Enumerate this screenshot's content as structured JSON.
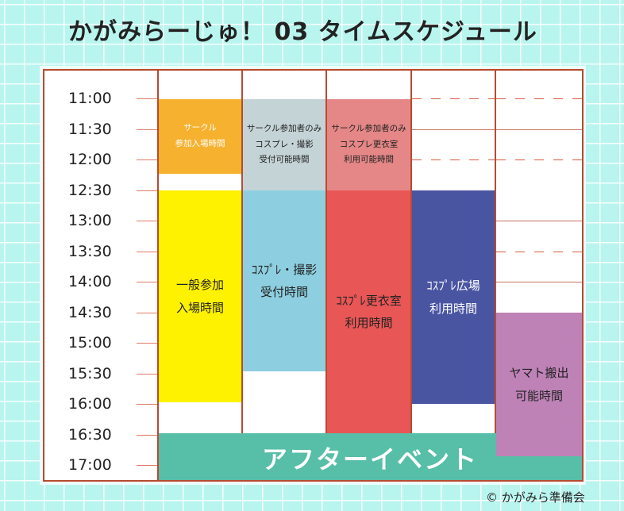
{
  "title": "かがみらーじゅ！ 03  タイムスケジュール",
  "credit": "© かがみら準備会",
  "times": [
    "11:00",
    "11:30",
    "12:00",
    "12:30",
    "13:00",
    "13:30",
    "14:00",
    "14:30",
    "15:00",
    "15:30",
    "16:00",
    "16:30",
    "17:00"
  ],
  "blocks": {
    "circle": "サークル\n参加入場時間",
    "general": "一般参加\n入場時間",
    "cos_circle": "サークル参加者のみ\nコスプレ・撮影\n受付可能時間",
    "cos_reception": "ｺｽﾌﾟﾚ・撮影\n受付時間",
    "dress_circle": "サークル参加者のみ\nコスプレ更衣室\n利用可能時間",
    "dress": "ｺｽﾌﾟﾚ更衣室\n利用時間",
    "plaza": "ｺｽﾌﾟﾚ広場\n利用時間",
    "yamato": "ヤマト搬出\n可能時間",
    "after": "アフターイベント"
  },
  "colors": {
    "circle": "#f6b12e",
    "general": "#fff200",
    "cos_circle": "#c4d3d6",
    "cos_reception": "#8dcfe0",
    "dress_circle": "#e58787",
    "dress": "#e85656",
    "plaza": "#4a55a2",
    "yamato": "#be82b7",
    "after": "#57bea8"
  }
}
